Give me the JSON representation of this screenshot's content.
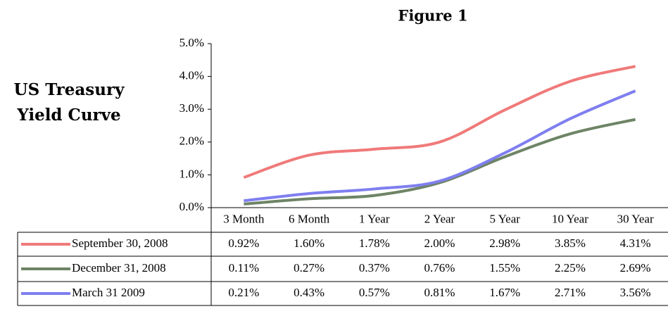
{
  "chart_data": {
    "type": "line",
    "title": "Figure 1",
    "subtitle": "US Treasury Yield Curve",
    "categories": [
      "3 Month",
      "6 Month",
      "1 Year",
      "2 Year",
      "5 Year",
      "10 Year",
      "30 Year"
    ],
    "series": [
      {
        "name": "September 30, 2008",
        "color": "#f07a7a",
        "values": [
          0.92,
          1.6,
          1.78,
          2.0,
          2.98,
          3.85,
          4.31
        ],
        "value_labels": [
          "0.92%",
          "1.60%",
          "1.78%",
          "2.00%",
          "2.98%",
          "3.85%",
          "4.31%"
        ]
      },
      {
        "name": "December 31, 2008",
        "color": "#6e8466",
        "values": [
          0.11,
          0.27,
          0.37,
          0.76,
          1.55,
          2.25,
          2.69
        ],
        "value_labels": [
          "0.11%",
          "0.27%",
          "0.37%",
          "0.76%",
          "1.55%",
          "2.25%",
          "2.69%"
        ]
      },
      {
        "name": "March 31 2009",
        "color": "#7f7ff0",
        "values": [
          0.21,
          0.43,
          0.57,
          0.81,
          1.67,
          2.71,
          3.56
        ],
        "value_labels": [
          "0.21%",
          "0.43%",
          "0.57%",
          "0.81%",
          "1.67%",
          "2.71%",
          "3.56%"
        ]
      }
    ],
    "ylim": [
      0,
      5
    ],
    "yticks": [
      {
        "value": 0,
        "label": "0.0%"
      },
      {
        "value": 1,
        "label": "1.0%"
      },
      {
        "value": 2,
        "label": "2.0%"
      },
      {
        "value": 3,
        "label": "3.0%"
      },
      {
        "value": 4,
        "label": "4.0%"
      },
      {
        "value": 5,
        "label": "5.0%"
      }
    ],
    "grid": false
  }
}
